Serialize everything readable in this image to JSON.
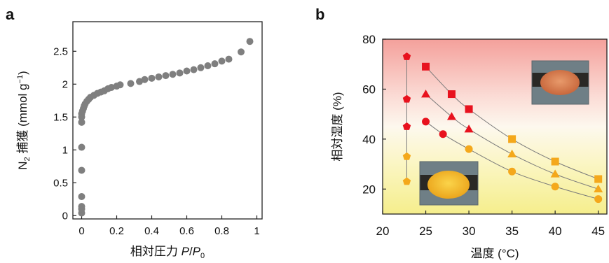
{
  "panels": {
    "a": {
      "label": "a"
    },
    "b": {
      "label": "b"
    }
  },
  "colors": {
    "grey_marker": "#7f7f7f",
    "red": "#e8121e",
    "orange": "#f4a81b",
    "curve": "#7a7a7a",
    "bg_top": "#f6a7a1",
    "bg_bottom": "#f7f09a"
  },
  "chart_data": [
    {
      "type": "scatter",
      "panel": "a",
      "xlabel": {
        "prefix": "相対圧力 ",
        "p": "P",
        "slash": "/",
        "p0": "P",
        "sub": "0"
      },
      "ylabel": {
        "n": "N",
        "sub": "2",
        "text": " 捕獲 (mmol g",
        "sup": "−1",
        "close": ")"
      },
      "xlim": [
        -0.05,
        1.03
      ],
      "ylim": [
        -0.05,
        2.95
      ],
      "xticks": [
        0,
        0.2,
        0.4,
        0.6,
        0.8,
        1
      ],
      "xtick_labels": [
        "0",
        "0.2",
        "0.4",
        "0.6",
        "0.8",
        "1"
      ],
      "yticks": [
        0,
        0.5,
        1,
        1.5,
        2,
        2.5
      ],
      "ytick_labels": [
        "0",
        "0.5",
        "1",
        "1.5",
        "2",
        "2.5"
      ],
      "grid": false,
      "series": [
        {
          "marker": "circle",
          "x": [
            0,
            0,
            0,
            0,
            0,
            0,
            0,
            0,
            0,
            0.005,
            0.01,
            0.015,
            0.02,
            0.03,
            0.04,
            0.05,
            0.07,
            0.09,
            0.11,
            0.13,
            0.15,
            0.17,
            0.2,
            0.22,
            0.28,
            0.33,
            0.36,
            0.4,
            0.44,
            0.48,
            0.52,
            0.56,
            0.6,
            0.64,
            0.68,
            0.72,
            0.76,
            0.8,
            0.84,
            0.91,
            0.96
          ],
          "y": [
            0.04,
            0.1,
            0.14,
            0.29,
            0.69,
            1.04,
            1.42,
            1.5,
            1.55,
            1.59,
            1.63,
            1.67,
            1.7,
            1.74,
            1.77,
            1.8,
            1.83,
            1.86,
            1.88,
            1.9,
            1.93,
            1.95,
            1.97,
            1.99,
            2.01,
            2.04,
            2.07,
            2.09,
            2.11,
            2.13,
            2.15,
            2.17,
            2.2,
            2.22,
            2.25,
            2.28,
            2.31,
            2.35,
            2.38,
            2.49,
            2.65
          ]
        }
      ]
    },
    {
      "type": "scatter",
      "panel": "b",
      "xlabel": "温度 (°C)",
      "ylabel": "相対湿度 (%)",
      "xlim": [
        20,
        46
      ],
      "ylim": [
        10,
        80
      ],
      "xticks": [
        20,
        25,
        30,
        35,
        40,
        45
      ],
      "xtick_labels": [
        "20",
        "25",
        "30",
        "35",
        "40",
        "45"
      ],
      "yticks": [
        20,
        40,
        60,
        80
      ],
      "ytick_labels": [
        "20",
        "40",
        "60",
        "80"
      ],
      "grid": false,
      "background": "gradient red (top) to yellow (bottom)",
      "series": [
        {
          "marker": "pentagon",
          "x": [
            22.8,
            22.8,
            22.8,
            22.8,
            22.8
          ],
          "y": [
            73,
            56,
            45,
            33,
            23
          ],
          "colors": [
            "red",
            "red",
            "red",
            "orange",
            "orange"
          ]
        },
        {
          "marker": "square",
          "x": [
            25,
            28,
            30,
            35,
            40,
            45
          ],
          "y": [
            69,
            58,
            52,
            40,
            31,
            24
          ],
          "colors": [
            "red",
            "red",
            "red",
            "orange",
            "orange",
            "orange"
          ]
        },
        {
          "marker": "triangle",
          "x": [
            25,
            28,
            30,
            35,
            40,
            45
          ],
          "y": [
            58,
            49,
            44,
            34,
            26,
            20
          ],
          "colors": [
            "red",
            "red",
            "red",
            "orange",
            "orange",
            "orange"
          ]
        },
        {
          "marker": "circle",
          "x": [
            25,
            27,
            30,
            35,
            40,
            45
          ],
          "y": [
            47,
            42,
            36,
            27,
            21,
            16
          ],
          "colors": [
            "red",
            "red",
            "orange",
            "orange",
            "orange",
            "orange"
          ]
        }
      ],
      "insets": [
        {
          "name": "orange-crystal-photo",
          "position": "top-right"
        },
        {
          "name": "yellow-crystal-photo",
          "position": "bottom-left"
        }
      ]
    }
  ]
}
